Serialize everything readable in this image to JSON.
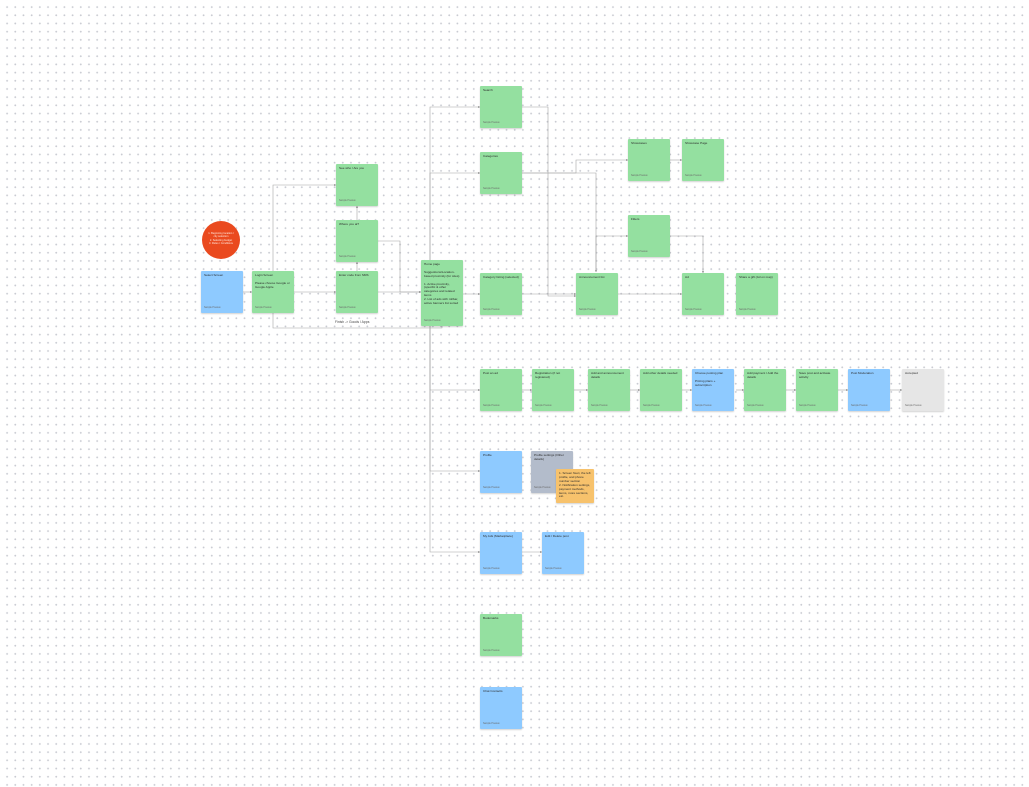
{
  "board": {
    "edge_label": "Finish -> Goods / Apps"
  },
  "circle_note": {
    "text": "1. Beginning location / city selection\n2. Selecting budget\n3. Rules / Conditions"
  },
  "notes": [
    {
      "id": "select-screen",
      "color": "blue",
      "title": "Select Screen",
      "footer": "Sample Preview"
    },
    {
      "id": "login-screen",
      "color": "green",
      "title": "Login Screen\n\nPlease choose Google or Google Apple",
      "footer": "Sample Preview"
    },
    {
      "id": "see-who-are-you",
      "color": "green",
      "title": "See who / Are you",
      "footer": "Sample Preview"
    },
    {
      "id": "where-you-at",
      "color": "green",
      "title": "Where you at?",
      "footer": "Sample Preview"
    },
    {
      "id": "enter-code-from-sms",
      "color": "green",
      "title": "Enter code from SMS",
      "footer": "Sample Preview"
    },
    {
      "id": "home-page",
      "color": "green",
      "title": "Home page\n\nSuggestions/Location-based proximity (for sites)\n\n1. Active proximity, (specific & other categories and related items\n2. List of ads with rollbar, active banners list sorted",
      "footer": "Sample Preview"
    },
    {
      "id": "search",
      "color": "green",
      "title": "Search",
      "footer": "Sample Preview"
    },
    {
      "id": "categories",
      "color": "green",
      "title": "Categories",
      "footer": "Sample Preview"
    },
    {
      "id": "showcases",
      "color": "green",
      "title": "Showcases",
      "footer": "Sample Preview"
    },
    {
      "id": "showcase-page",
      "color": "green",
      "title": "Showcase Page",
      "footer": "Sample Preview"
    },
    {
      "id": "filters",
      "color": "green",
      "title": "Filters",
      "footer": "Sample Preview"
    },
    {
      "id": "category-listing-selected",
      "color": "green",
      "title": "Category listing (selected)",
      "footer": "Sample Preview"
    },
    {
      "id": "announcement-list",
      "color": "green",
      "title": "Announcement list",
      "footer": "Sample Preview"
    },
    {
      "id": "ad",
      "color": "green",
      "title": "Ad",
      "footer": "Sample Preview"
    },
    {
      "id": "share-a-gift",
      "color": "green",
      "title": "Share a gift (Ad on map)",
      "footer": "Sample Preview"
    },
    {
      "id": "post-an-ad",
      "color": "green",
      "title": "Post an ad",
      "footer": "Sample Preview"
    },
    {
      "id": "registration",
      "color": "green",
      "title": "Registration (if not registered)",
      "footer": "Sample Preview"
    },
    {
      "id": "add-and-announcement-details",
      "color": "green",
      "title": "Add and announcement details",
      "footer": "Sample Preview"
    },
    {
      "id": "add-other-details",
      "color": "green",
      "title": "Add other details needed",
      "footer": "Sample Preview"
    },
    {
      "id": "choose-posting-plan",
      "color": "blue",
      "title": "Choose posting plan\n\nPricing plans + subscription",
      "footer": "Sample Preview"
    },
    {
      "id": "add-payment-details",
      "color": "green",
      "title": "Add payment / Add the details",
      "footer": "Sample Preview"
    },
    {
      "id": "save-post-and-activate",
      "color": "green",
      "title": "Save post and activate activity",
      "footer": "Sample Preview"
    },
    {
      "id": "post-moderation",
      "color": "blue",
      "title": "Post Moderation",
      "footer": "Sample Preview"
    },
    {
      "id": "accepted",
      "color": "grey",
      "title": "Accepted",
      "footer": "Sample Preview"
    },
    {
      "id": "profile",
      "color": "blue",
      "title": "Profile",
      "footer": "Sample Preview"
    },
    {
      "id": "profile-settings",
      "color": "slate",
      "title": "Profile settings (Other details)",
      "footer": "Sample Preview"
    },
    {
      "id": "profile-settings-note",
      "color": "orange",
      "title": "1. Screen Next, the left profile, and phone number section\n2. Notification settings, payment methods, items, more sections, etc.",
      "footer": ""
    },
    {
      "id": "my-ads",
      "color": "blue",
      "title": "My Ads (Marketplace)",
      "footer": "Sample Preview"
    },
    {
      "id": "edit-delete-post",
      "color": "blue",
      "title": "Edit / Delete post",
      "footer": "Sample Preview"
    },
    {
      "id": "bookmarks",
      "color": "green",
      "title": "Bookmarks",
      "footer": "Sample Preview"
    },
    {
      "id": "chat-contacts",
      "color": "blue",
      "title": "Chat Contacts",
      "footer": "Sample Preview"
    }
  ]
}
